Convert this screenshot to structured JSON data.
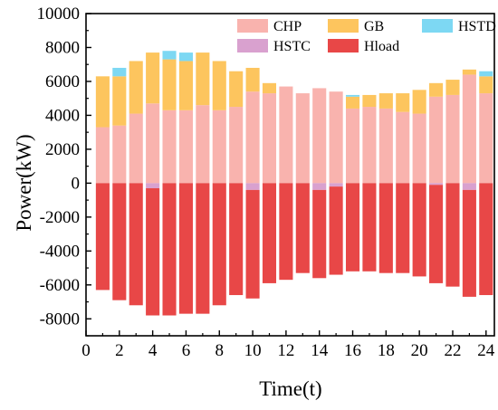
{
  "chart_data": {
    "type": "bar",
    "stacked": true,
    "xlabel": "Time(t)",
    "ylabel": "Power(kW)",
    "ylim": [
      -9000,
      10000
    ],
    "xlim": [
      0,
      24.5
    ],
    "x_ticks": [
      0,
      2,
      4,
      6,
      8,
      10,
      12,
      14,
      16,
      18,
      20,
      22,
      24
    ],
    "y_ticks": [
      -8000,
      -6000,
      -4000,
      -2000,
      0,
      2000,
      4000,
      6000,
      8000,
      10000
    ],
    "grid": false,
    "legend_position": "top-right",
    "x": [
      1,
      2,
      3,
      4,
      5,
      6,
      7,
      8,
      9,
      10,
      11,
      12,
      13,
      14,
      15,
      16,
      17,
      18,
      19,
      20,
      21,
      22,
      23,
      24
    ],
    "series": [
      {
        "name": "CHP",
        "color": "#F9B3AE",
        "values": [
          3300,
          3400,
          4100,
          4700,
          4300,
          4300,
          4600,
          4300,
          4500,
          5400,
          5300,
          5700,
          5300,
          5600,
          5400,
          4400,
          4500,
          4400,
          4200,
          4100,
          5100,
          5200,
          6400,
          5300
        ]
      },
      {
        "name": "GB",
        "color": "#FDC55E",
        "values": [
          3000,
          2900,
          3100,
          3000,
          3000,
          2900,
          3100,
          2900,
          2100,
          1400,
          600,
          0,
          0,
          0,
          0,
          700,
          700,
          900,
          1100,
          1400,
          800,
          900,
          300,
          1000
        ]
      },
      {
        "name": "HSTD",
        "color": "#7DD8F3",
        "values": [
          0,
          500,
          0,
          0,
          500,
          500,
          0,
          0,
          0,
          0,
          0,
          0,
          0,
          0,
          0,
          100,
          0,
          0,
          0,
          0,
          0,
          0,
          0,
          300
        ]
      },
      {
        "name": "HSTC",
        "color": "#D9A1CF",
        "values": [
          0,
          0,
          0,
          -300,
          0,
          0,
          0,
          0,
          0,
          -400,
          0,
          0,
          0,
          -400,
          -200,
          0,
          0,
          0,
          0,
          0,
          -100,
          0,
          -400,
          0
        ]
      },
      {
        "name": "Hload",
        "color": "#E84747",
        "values": [
          -6300,
          -6900,
          -7200,
          -7500,
          -7800,
          -7700,
          -7700,
          -7200,
          -6600,
          -6400,
          -5900,
          -5700,
          -5300,
          -5200,
          -5200,
          -5200,
          -5200,
          -5300,
          -5300,
          -5500,
          -5800,
          -6100,
          -6300,
          -6600
        ]
      }
    ]
  }
}
